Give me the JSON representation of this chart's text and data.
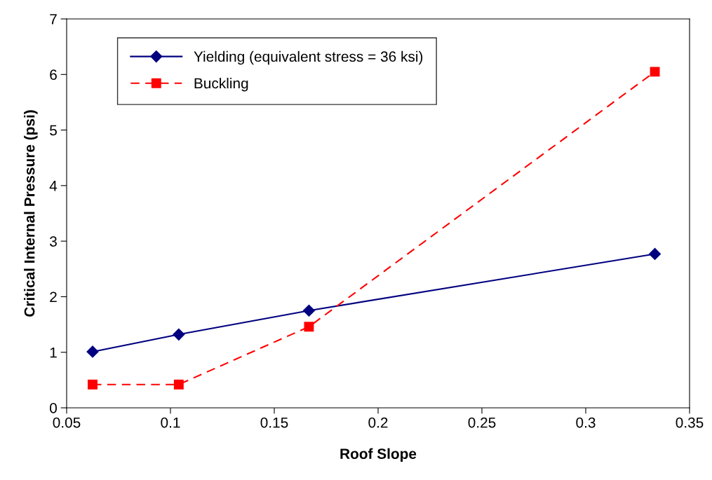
{
  "chart_data": {
    "type": "line",
    "xlabel": "Roof Slope",
    "ylabel": "Critical Internal Pressure (psi)",
    "x": [
      0.0625,
      0.104,
      0.1667,
      0.3333
    ],
    "series": [
      {
        "name": "Yielding (equivalent stress = 36 ksi)",
        "color": "#000080",
        "values": [
          1.01,
          1.32,
          1.75,
          2.77
        ],
        "marker": "diamond",
        "line_style": "solid"
      },
      {
        "name": "Buckling",
        "color": "#ff0000",
        "values": [
          0.42,
          0.42,
          1.46,
          6.05
        ],
        "marker": "square",
        "line_style": "dashed"
      }
    ],
    "xlim": [
      0.05,
      0.35
    ],
    "xticks": [
      0.05,
      0.1,
      0.15,
      0.2,
      0.25,
      0.3,
      0.35
    ],
    "ylim": [
      0,
      7
    ],
    "yticks": [
      0,
      1,
      2,
      3,
      4,
      5,
      6,
      7
    ],
    "grid": false,
    "legend": "top left"
  }
}
